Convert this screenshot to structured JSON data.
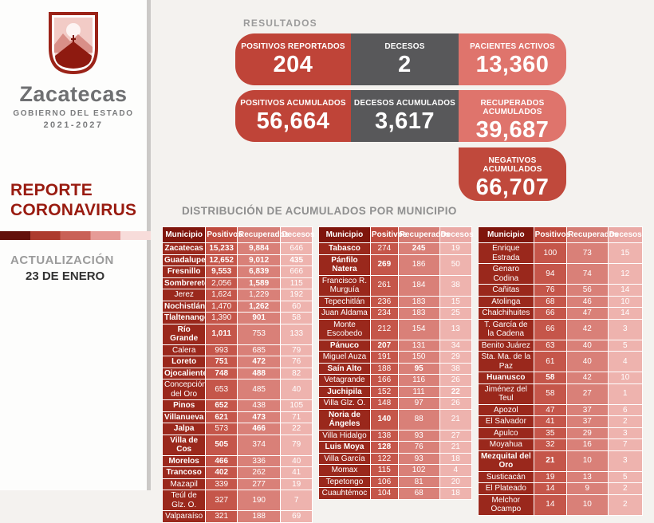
{
  "sidebar": {
    "logo_icon": "zacatecas-shield-icon",
    "brand": "Zacatecas",
    "gov": "GOBIERNO DEL ESTADO",
    "term": "2021-2027",
    "report_title_line1": "REPORTE",
    "report_title_line2": "CORONAVIRUS",
    "strip_colors": [
      "#63100b",
      "#ad3b2e",
      "#c96157",
      "#e69b97",
      "#f7dcda"
    ],
    "update_label": "ACTUALIZACIÓN",
    "update_date": "23 DE ENERO"
  },
  "results": {
    "heading": "RESULTADOS",
    "cards": [
      {
        "label": "POSITIVOS REPORTADOS",
        "value": "204",
        "color": "#bf4438"
      },
      {
        "label": "DECESOS",
        "value": "2",
        "color": "#58585a"
      },
      {
        "label": "PACIENTES ACTIVOS",
        "value": "13,360",
        "color": "#df746c"
      },
      {
        "label": "POSITIVOS ACUMULADOS",
        "value": "56,664",
        "color": "#bf4438"
      },
      {
        "label": "DECESOS ACUMULADOS",
        "value": "3,617",
        "color": "#58585a"
      },
      {
        "label": "RECUPERADOS ACUMULADOS",
        "value": "39,687",
        "color": "#df746c"
      },
      {
        "label": "NEGATIVOS ACUMULADOS",
        "value": "66,707",
        "color": "#c0493c"
      }
    ]
  },
  "distribution_heading": "DISTRIBUCIÓN DE ACUMULADOS POR MUNICIPIO",
  "chart_data": {
    "type": "table",
    "title": "DISTRIBUCIÓN DE ACUMULADOS POR MUNICIPIO",
    "summary": {
      "positivos_reportados": "204",
      "decesos": "2",
      "pacientes_activos": "13,360",
      "positivos_acumulados": "56,664",
      "decesos_acumulados": "3,617",
      "recuperados_acumulados": "39,687",
      "negativos_acumulados": "66,707"
    },
    "columns": [
      "Municipio",
      "Positivos",
      "Recuperados",
      "Decesos"
    ],
    "table_split": [
      21,
      19,
      18
    ],
    "rows": [
      [
        "Zacatecas",
        "15,233",
        "9,884",
        "646"
      ],
      [
        "Guadalupe",
        "12,652",
        "9,012",
        "435"
      ],
      [
        "Fresnillo",
        "9,553",
        "6,839",
        "666"
      ],
      [
        "Sombrerete",
        "2,056",
        "1,589",
        "115"
      ],
      [
        "Jerez",
        "1,624",
        "1,229",
        "192"
      ],
      [
        "Nochistlán",
        "1,470",
        "1,262",
        "60"
      ],
      [
        "Tlaltenango",
        "1,390",
        "901",
        "58"
      ],
      [
        "Río Grande",
        "1,011",
        "753",
        "133"
      ],
      [
        "Calera",
        "993",
        "685",
        "79"
      ],
      [
        "Loreto",
        "751",
        "472",
        "76"
      ],
      [
        "Ojocaliente",
        "748",
        "488",
        "82"
      ],
      [
        "Concepción del Oro",
        "653",
        "485",
        "40"
      ],
      [
        "Pinos",
        "652",
        "438",
        "105"
      ],
      [
        "Villanueva",
        "621",
        "473",
        "71"
      ],
      [
        "Jalpa",
        "573",
        "466",
        "22"
      ],
      [
        "Villa de Cos",
        "505",
        "374",
        "79"
      ],
      [
        "Morelos",
        "466",
        "336",
        "40"
      ],
      [
        "Trancoso",
        "402",
        "262",
        "41"
      ],
      [
        "Mazapil",
        "339",
        "277",
        "19"
      ],
      [
        "Teúl de Glz. O.",
        "327",
        "190",
        "7"
      ],
      [
        "Valparaíso",
        "321",
        "188",
        "69"
      ],
      [
        "Tabasco",
        "274",
        "245",
        "19"
      ],
      [
        "Pánfilo Natera",
        "269",
        "186",
        "50"
      ],
      [
        "Francisco R. Murguía",
        "261",
        "184",
        "38"
      ],
      [
        "Tepechitlán",
        "236",
        "183",
        "15"
      ],
      [
        "Juan Aldama",
        "234",
        "183",
        "25"
      ],
      [
        "Monte Escobedo",
        "212",
        "154",
        "13"
      ],
      [
        "Pánuco",
        "207",
        "131",
        "34"
      ],
      [
        "Miguel Auza",
        "191",
        "150",
        "29"
      ],
      [
        "Saín Alto",
        "188",
        "95",
        "38"
      ],
      [
        "Vetagrande",
        "166",
        "116",
        "26"
      ],
      [
        "Juchipila",
        "152",
        "111",
        "22"
      ],
      [
        "Villa Glz. O.",
        "148",
        "97",
        "26"
      ],
      [
        "Noria de Ángeles",
        "140",
        "88",
        "21"
      ],
      [
        "Villa Hidalgo",
        "138",
        "93",
        "27"
      ],
      [
        "Luis Moya",
        "128",
        "76",
        "21"
      ],
      [
        "Villa García",
        "122",
        "93",
        "18"
      ],
      [
        "Momax",
        "115",
        "102",
        "4"
      ],
      [
        "Tepetongo",
        "106",
        "81",
        "20"
      ],
      [
        "Cuauhtémoc",
        "104",
        "68",
        "18"
      ],
      [
        "Enrique Estrada",
        "100",
        "73",
        "15"
      ],
      [
        "Genaro Codina",
        "94",
        "74",
        "12"
      ],
      [
        "Cañitas",
        "76",
        "56",
        "14"
      ],
      [
        "Atolinga",
        "68",
        "46",
        "10"
      ],
      [
        "Chalchihuites",
        "66",
        "47",
        "14"
      ],
      [
        "T. García de la Cadena",
        "66",
        "42",
        "3"
      ],
      [
        "Benito Juárez",
        "63",
        "40",
        "5"
      ],
      [
        "Sta. Ma. de la Paz",
        "61",
        "40",
        "4"
      ],
      [
        "Huanusco",
        "58",
        "42",
        "10"
      ],
      [
        "Jiménez del Teul",
        "58",
        "27",
        "1"
      ],
      [
        "Apozol",
        "47",
        "37",
        "6"
      ],
      [
        "El Salvador",
        "41",
        "37",
        "2"
      ],
      [
        "Apulco",
        "35",
        "29",
        "3"
      ],
      [
        "Moyahua",
        "32",
        "16",
        "7"
      ],
      [
        "Mezquital del Oro",
        "21",
        "10",
        "3"
      ],
      [
        "Susticacán",
        "19",
        "13",
        "5"
      ],
      [
        "El Plateado",
        "14",
        "9",
        "2"
      ],
      [
        "Melchor Ocampo",
        "14",
        "10",
        "2"
      ]
    ],
    "bold_cells": [
      [
        1,
        1,
        1,
        0
      ],
      [
        1,
        1,
        1,
        1
      ],
      [
        1,
        1,
        1,
        0
      ],
      [
        1,
        0,
        1,
        0
      ],
      [
        0,
        0,
        0,
        0
      ],
      [
        1,
        0,
        1,
        0
      ],
      [
        1,
        0,
        1,
        0
      ],
      [
        1,
        1,
        0,
        0
      ],
      [
        0,
        0,
        0,
        0
      ],
      [
        1,
        1,
        1,
        0
      ],
      [
        1,
        1,
        1,
        0
      ],
      [
        0,
        0,
        0,
        0
      ],
      [
        1,
        1,
        0,
        0
      ],
      [
        1,
        1,
        1,
        0
      ],
      [
        1,
        0,
        1,
        0
      ],
      [
        1,
        1,
        0,
        0
      ],
      [
        1,
        1,
        0,
        0
      ],
      [
        1,
        1,
        0,
        0
      ],
      [
        0,
        0,
        0,
        0
      ],
      [
        0,
        0,
        0,
        0
      ],
      [
        0,
        0,
        0,
        0
      ],
      [
        1,
        0,
        1,
        0
      ],
      [
        1,
        1,
        0,
        0
      ],
      [
        0,
        0,
        0,
        0
      ],
      [
        0,
        0,
        0,
        0
      ],
      [
        0,
        0,
        0,
        0
      ],
      [
        0,
        0,
        0,
        0
      ],
      [
        1,
        1,
        0,
        0
      ],
      [
        0,
        0,
        0,
        0
      ],
      [
        1,
        0,
        1,
        0
      ],
      [
        0,
        0,
        0,
        0
      ],
      [
        1,
        0,
        0,
        1
      ],
      [
        0,
        0,
        0,
        0
      ],
      [
        1,
        1,
        0,
        0
      ],
      [
        0,
        0,
        0,
        0
      ],
      [
        1,
        1,
        0,
        0
      ],
      [
        0,
        0,
        0,
        0
      ],
      [
        0,
        0,
        0,
        0
      ],
      [
        0,
        0,
        0,
        0
      ],
      [
        0,
        0,
        0,
        0
      ],
      [
        0,
        0,
        0,
        0
      ],
      [
        0,
        0,
        0,
        0
      ],
      [
        0,
        0,
        0,
        0
      ],
      [
        0,
        0,
        0,
        0
      ],
      [
        0,
        0,
        0,
        0
      ],
      [
        0,
        0,
        0,
        0
      ],
      [
        0,
        0,
        0,
        0
      ],
      [
        0,
        0,
        0,
        0
      ],
      [
        1,
        1,
        0,
        0
      ],
      [
        0,
        0,
        0,
        0
      ],
      [
        0,
        0,
        0,
        0
      ],
      [
        0,
        0,
        0,
        0
      ],
      [
        0,
        0,
        0,
        0
      ],
      [
        0,
        0,
        0,
        0
      ],
      [
        1,
        1,
        0,
        0
      ],
      [
        0,
        0,
        0,
        0
      ],
      [
        0,
        0,
        0,
        0
      ],
      [
        0,
        0,
        0,
        0
      ]
    ]
  }
}
